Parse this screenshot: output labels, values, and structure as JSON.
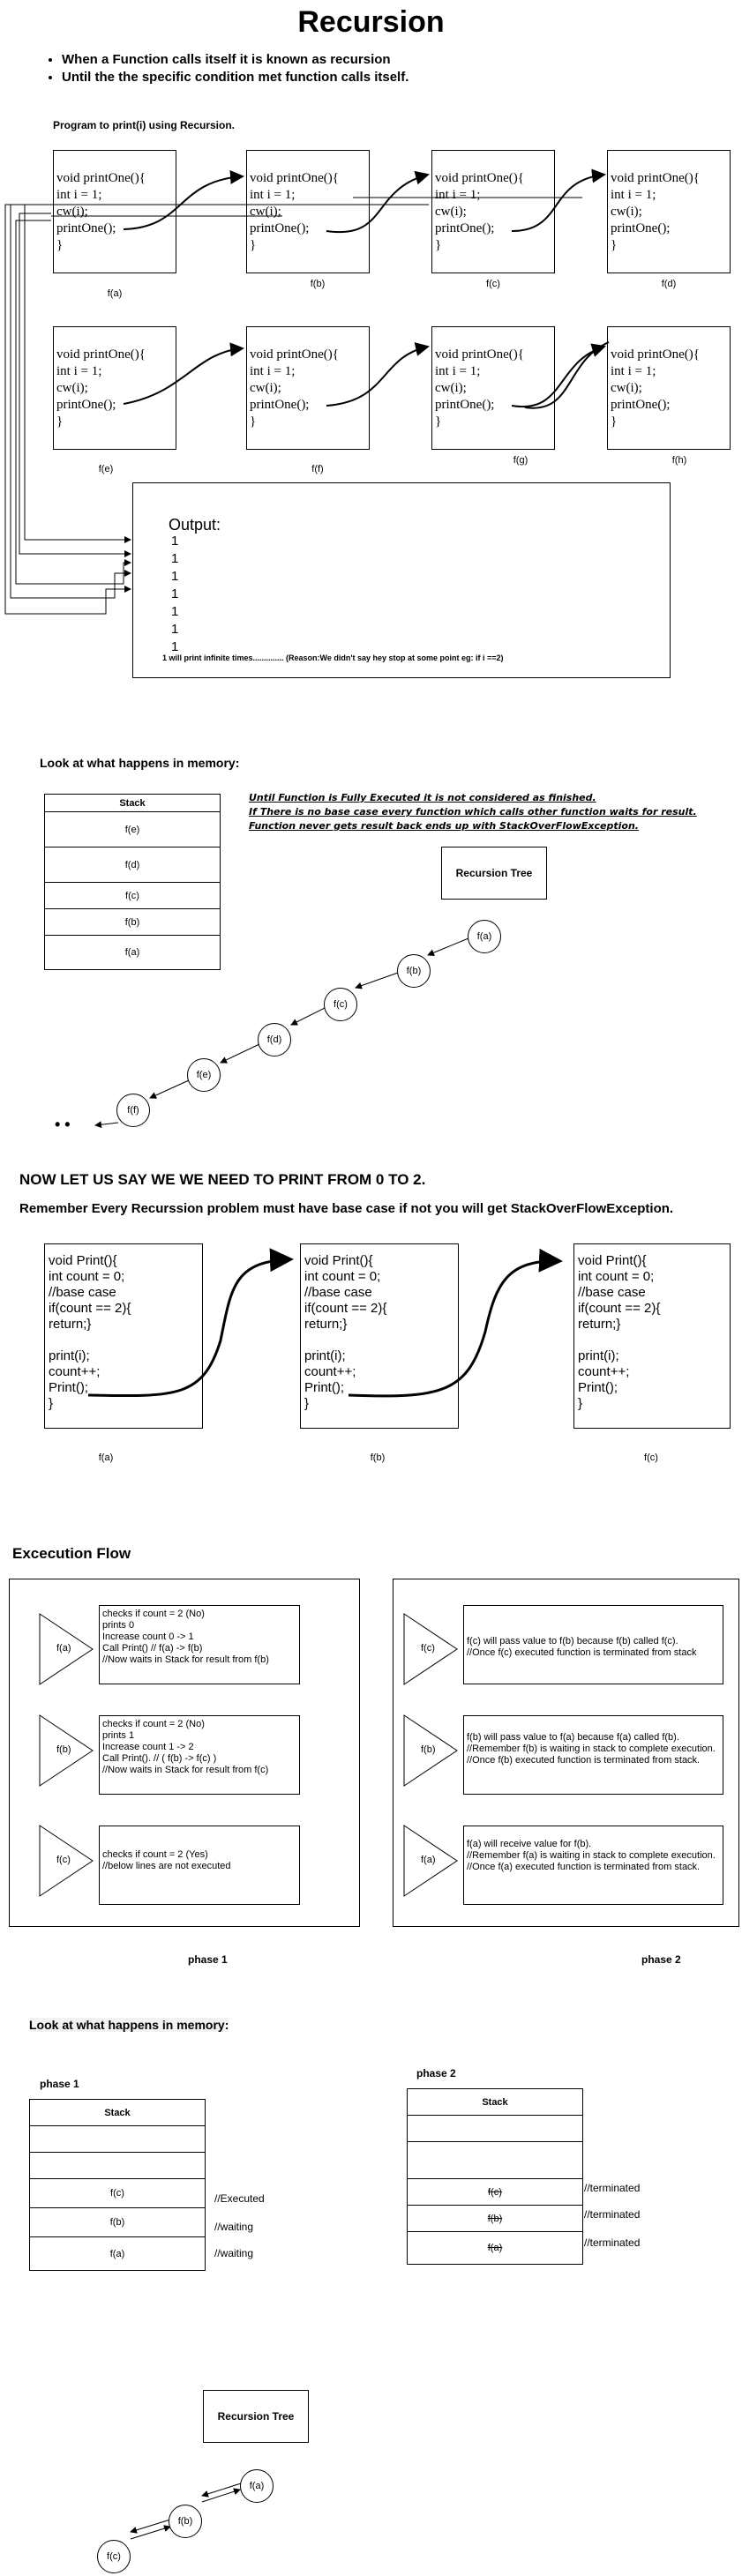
{
  "title": "Recursion",
  "bullets": [
    "When a Function calls itself it is known as recursion",
    "Until the the specific condition met function calls itself."
  ],
  "program_heading": "Program to print(i) using Recursion.",
  "code_lines": [
    "void printOne(){",
    "int i = 1;",
    "cw(i);",
    "printOne();",
    "}"
  ],
  "functions_row1": [
    "f(a)",
    "f(b)",
    "f(c)",
    "f(d)"
  ],
  "functions_row2": [
    "f(e)",
    "f(f)",
    "f(g)",
    "f(h)"
  ],
  "output": {
    "label": "Output:",
    "lines": [
      "1",
      "1",
      "1",
      "1",
      "1",
      "1",
      "1"
    ],
    "note": "1 will print infinite times.............. (Reason:We didn't say hey stop at some point eg: if i ==2)"
  },
  "memory_heading_1": "Look at what happens in memory:",
  "stack_1": {
    "header": "Stack",
    "items": [
      "f(e)",
      "f(d)",
      "f(c)",
      "f(b)",
      "f(a)"
    ]
  },
  "memory_notes": [
    "Until Function is Fully Executed it is not considered as finished.",
    "If There is no base case every function which calls other function waits for result.",
    "Function never gets result back ends up with StackOverFlowException."
  ],
  "recursion_tree_label": "Recursion Tree",
  "tree_1_nodes": [
    "f(a)",
    "f(b)",
    "f(c)",
    "f(d)",
    "f(e)",
    "f(f)"
  ],
  "tree_1_more": "• •",
  "heading_print_0_2": "NOW LET US SAY WE WE NEED TO PRINT FROM 0 TO 2.",
  "heading_base_case": "Remember Every Recurssion problem must have base case if not you will get StackOverFlowException.",
  "code2_lines": [
    "void Print(){",
    "int count = 0;",
    "//base case",
    "if(count == 2){",
    "return;}",
    "",
    "print(i);",
    "count++;",
    "Print();",
    "}"
  ],
  "functions_row3": [
    "f(a)",
    "f(b)",
    "f(c)"
  ],
  "execution_flow_heading": "Excecution Flow",
  "phase1_steps": [
    {
      "fn": "f(a)",
      "text": "checks if count = 2 (No)\nprints 0\nIncrease count 0 -> 1\nCall Print() // f(a) -> f(b)\n//Now waits in Stack for result from f(b)"
    },
    {
      "fn": "f(b)",
      "text": "checks if count = 2 (No)\nprints 1\nIncrease count 1 -> 2\nCall Print(). // ( f(b) -> f(c) )\n//Now waits in Stack for result from f(c)"
    },
    {
      "fn": "f(c)",
      "text": "checks if count = 2 (Yes)\n//below lines are not executed"
    }
  ],
  "phase2_steps": [
    {
      "fn": "f(c)",
      "text": "f(c) will pass value to f(b) because f(b) called f(c).\n//Once f(c) executed function is terminated from stack"
    },
    {
      "fn": "f(b)",
      "text": "f(b) will pass value to f(a) because f(a) called f(b).\n//Remember f(b) is waiting in stack to complete execution.\n//Once f(b) executed function is terminated from stack."
    },
    {
      "fn": "f(a)",
      "text": "f(a) will receive value for f(b).\n//Remember f(a) is waiting in stack to complete execution.\n//Once f(a) executed function is terminated from stack."
    }
  ],
  "phase1_label": "phase 1",
  "phase2_label": "phase 2",
  "memory_heading_2": "Look at what happens in memory:",
  "stack_phase1": {
    "title": "phase 1",
    "header": "Stack",
    "items": [
      "f(c)",
      "f(b)",
      "f(a)"
    ],
    "notes": [
      "//Executed",
      "//waiting",
      "//waiting"
    ]
  },
  "stack_phase2": {
    "title": "phase 2",
    "header": "Stack",
    "items": [
      "f(c)",
      "f(b)",
      "f(a)"
    ],
    "notes": [
      "//terminated",
      "//terminated",
      "//terminated"
    ]
  },
  "recursion_tree_label_2": "Recursion Tree",
  "tree_2_nodes": [
    "f(a)",
    "f(b)",
    "f(c)"
  ]
}
